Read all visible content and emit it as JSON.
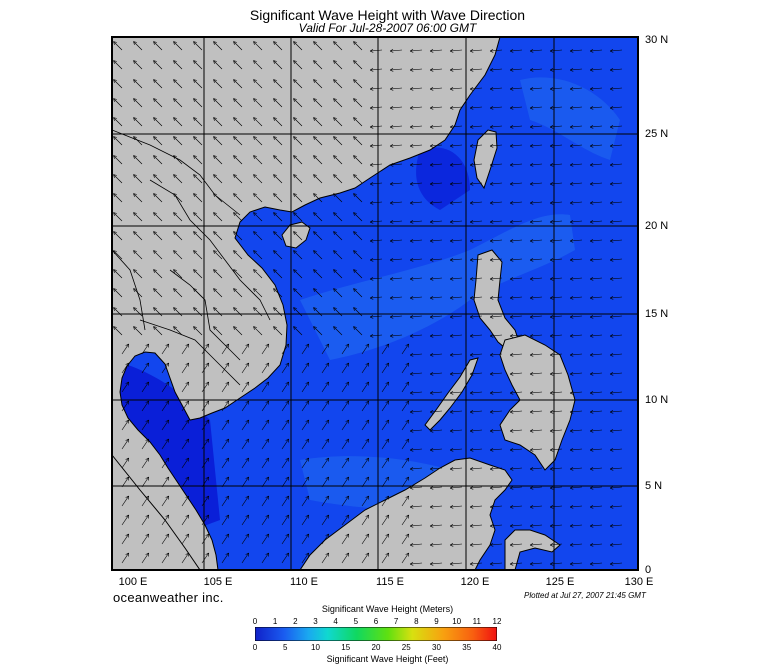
{
  "title": "Significant Wave Height with Wave Direction",
  "subtitle": "Valid For Jul-28-2007 06:00 GMT",
  "brand": "oceanweather inc.",
  "plotted": "Plotted at Jul 27, 2007 21:45 GMT",
  "longitude_labels": [
    "100 E",
    "105 E",
    "110 E",
    "115 E",
    "120 E",
    "125 E",
    "130 E"
  ],
  "latitude_labels": [
    "30 N",
    "25 N",
    "20 N",
    "15 N",
    "10 N",
    "5 N",
    "0"
  ],
  "colorbar": {
    "title_meters": "Significant Wave Height (Meters)",
    "title_feet": "Significant Wave Height (Feet)",
    "meter_ticks": [
      "0",
      "1",
      "2",
      "3",
      "4",
      "5",
      "6",
      "7",
      "8",
      "9",
      "10",
      "11",
      "12"
    ],
    "feet_ticks": [
      "0",
      "5",
      "10",
      "15",
      "20",
      "25",
      "30",
      "35",
      "40"
    ]
  },
  "colors": {
    "land": "#c0c0c0",
    "ocean_dark": "#0a1fd8",
    "ocean_mid": "#1246ee",
    "ocean_light": "#1e62f0",
    "arrow": "#000000"
  },
  "map_extent": {
    "lon_min": 100,
    "lon_max": 130,
    "lat_min": 0,
    "lat_max": 30
  }
}
